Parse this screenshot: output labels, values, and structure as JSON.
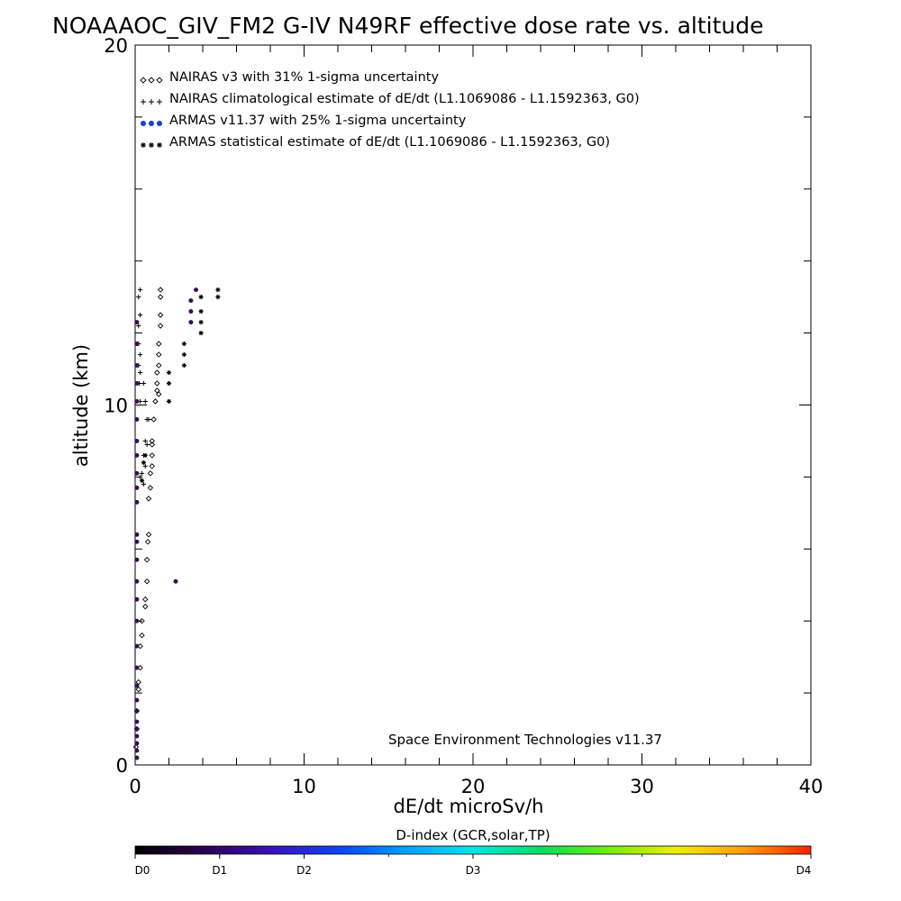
{
  "chart_data": {
    "type": "scatter",
    "title": "NOAAAOC_GIV_FM2 G-IV   N49RF  effective dose rate vs. altitude",
    "xlabel": "dE/dt microSv/h",
    "ylabel": "altitude (km)",
    "xlim": [
      0,
      40
    ],
    "ylim": [
      0,
      20
    ],
    "x_ticks": [
      "0",
      "10",
      "20",
      "30",
      "40"
    ],
    "y_ticks": [
      "0",
      "10",
      "20"
    ],
    "legend_position": "top-left",
    "credit": "Space Environment Technologies v11.37",
    "legend": [
      {
        "label": "NAIRAS v3 with 31% 1-sigma uncertainty",
        "marker": "diamond",
        "color": "#000000"
      },
      {
        "label": "NAIRAS climatological estimate of dE/dt (L1.1069086 - L1.1592363, G0)",
        "marker": "plus",
        "color": "#000000"
      },
      {
        "label": "ARMAS v11.37 with 25% 1-sigma uncertainty",
        "marker": "dot",
        "color": "#1c3cd8"
      },
      {
        "label": "ARMAS statistical estimate of dE/dt (L1.1069086 - L1.1592363, G0)",
        "marker": "asterisk",
        "color": "#000000"
      }
    ],
    "series": [
      {
        "name": "NAIRAS v3 with 31% 1-sigma uncertainty",
        "marker": "diamond",
        "points": [
          [
            1.5,
            13.2
          ],
          [
            1.5,
            13.0
          ],
          [
            1.5,
            12.5
          ],
          [
            1.5,
            12.2
          ],
          [
            1.4,
            11.7
          ],
          [
            1.4,
            11.4
          ],
          [
            1.4,
            11.1
          ],
          [
            1.3,
            10.9
          ],
          [
            1.3,
            10.6
          ],
          [
            1.3,
            10.4
          ],
          [
            1.4,
            10.3
          ],
          [
            1.2,
            10.1
          ],
          [
            1.1,
            9.6
          ],
          [
            1.0,
            9.0
          ],
          [
            1.0,
            8.9
          ],
          [
            1.0,
            8.6
          ],
          [
            1.0,
            8.3
          ],
          [
            0.9,
            8.1
          ],
          [
            0.9,
            7.7
          ],
          [
            0.8,
            7.4
          ],
          [
            0.8,
            6.4
          ],
          [
            0.75,
            6.2
          ],
          [
            0.7,
            5.7
          ],
          [
            0.7,
            5.1
          ],
          [
            0.6,
            4.6
          ],
          [
            0.6,
            4.4
          ],
          [
            0.4,
            4.0
          ],
          [
            0.4,
            3.6
          ],
          [
            0.3,
            3.3
          ],
          [
            0.3,
            2.7
          ],
          [
            0.2,
            2.3
          ],
          [
            0.2,
            2.1
          ],
          [
            0.1,
            1.5
          ],
          [
            0.1,
            1.0
          ],
          [
            0.05,
            0.5
          ]
        ]
      },
      {
        "name": "NAIRAS climatological estimate of dE/dt (L1.1069086 - L1.1592363, G0)",
        "marker": "plus",
        "points": [
          [
            0.3,
            13.2
          ],
          [
            0.2,
            13.0
          ],
          [
            0.3,
            12.5
          ],
          [
            0.2,
            12.2
          ],
          [
            0.2,
            11.7
          ],
          [
            0.3,
            11.4
          ],
          [
            0.2,
            11.1
          ],
          [
            0.3,
            10.9
          ],
          [
            0.25,
            10.6
          ],
          [
            0.5,
            10.6
          ],
          [
            0.3,
            10.1
          ],
          [
            0.6,
            10.1
          ],
          [
            0.7,
            9.6
          ],
          [
            0.8,
            9.6
          ],
          [
            0.6,
            9.0
          ],
          [
            0.7,
            8.9
          ],
          [
            0.5,
            8.6
          ],
          [
            0.6,
            8.3
          ],
          [
            0.4,
            8.1
          ],
          [
            0.3,
            8.0
          ],
          [
            0.5,
            7.8
          ]
        ]
      },
      {
        "name": "ARMAS v11.37 with 25% 1-sigma uncertainty",
        "marker": "dot",
        "points": [
          [
            3.6,
            13.2
          ],
          [
            3.3,
            12.9
          ],
          [
            3.3,
            12.6
          ],
          [
            3.3,
            12.3
          ],
          [
            2.4,
            5.1
          ],
          [
            0.1,
            12.3
          ],
          [
            0.1,
            11.7
          ],
          [
            0.1,
            11.1
          ],
          [
            0.1,
            10.6
          ],
          [
            0.1,
            10.1
          ],
          [
            0.1,
            9.6
          ],
          [
            0.1,
            9.0
          ],
          [
            0.1,
            8.6
          ],
          [
            0.1,
            8.1
          ],
          [
            0.1,
            7.7
          ],
          [
            0.1,
            7.3
          ],
          [
            0.1,
            6.4
          ],
          [
            0.1,
            6.2
          ],
          [
            0.1,
            5.7
          ],
          [
            0.1,
            5.1
          ],
          [
            0.1,
            4.6
          ],
          [
            0.1,
            4.0
          ],
          [
            0.1,
            3.3
          ],
          [
            0.1,
            2.7
          ],
          [
            0.1,
            2.2
          ],
          [
            0.1,
            1.8
          ],
          [
            0.1,
            1.5
          ],
          [
            0.1,
            1.2
          ],
          [
            0.1,
            1.0
          ],
          [
            0.1,
            0.8
          ],
          [
            0.1,
            0.6
          ],
          [
            0.1,
            0.4
          ],
          [
            0.1,
            0.2
          ]
        ]
      },
      {
        "name": "ARMAS statistical estimate of dE/dt (L1.1069086 - L1.1592363, G0)",
        "marker": "asterisk",
        "points": [
          [
            4.9,
            13.2
          ],
          [
            4.9,
            13.0
          ],
          [
            3.9,
            13.0
          ],
          [
            3.9,
            12.6
          ],
          [
            3.9,
            12.3
          ],
          [
            3.9,
            12.0
          ],
          [
            2.9,
            11.7
          ],
          [
            2.9,
            11.4
          ],
          [
            2.9,
            11.1
          ],
          [
            2.0,
            10.9
          ],
          [
            2.0,
            10.6
          ],
          [
            2.0,
            10.1
          ],
          [
            0.6,
            8.6
          ],
          [
            0.5,
            8.4
          ],
          [
            0.4,
            7.9
          ]
        ]
      }
    ],
    "colorbar": {
      "title": "D-index (GCR,solar,TP)",
      "labels": [
        "D0",
        "D1",
        "D2",
        "D3",
        "D4"
      ],
      "label_positions": [
        0,
        0.125,
        0.25,
        0.5,
        1.0
      ],
      "stops": [
        "#000000",
        "#2a0050",
        "#3a10b8",
        "#1040ff",
        "#00a0ff",
        "#00e8e8",
        "#00e060",
        "#70f000",
        "#f0f000",
        "#ffa000",
        "#ff2000"
      ]
    }
  }
}
